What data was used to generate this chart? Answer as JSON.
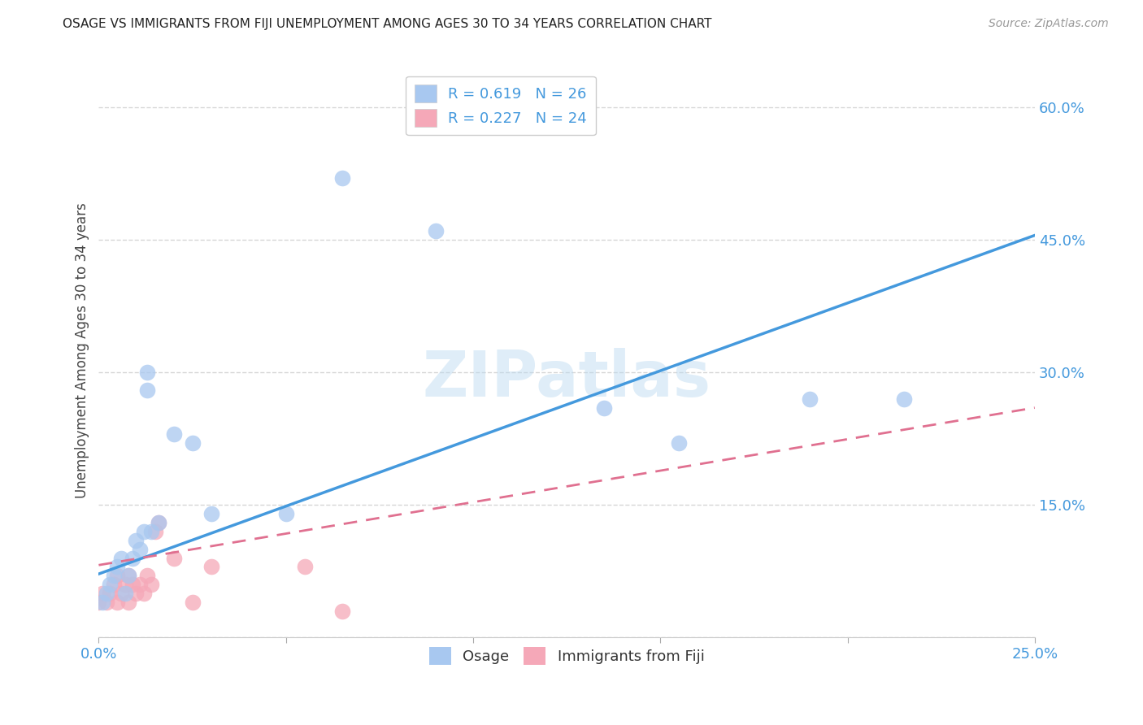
{
  "title": "OSAGE VS IMMIGRANTS FROM FIJI UNEMPLOYMENT AMONG AGES 30 TO 34 YEARS CORRELATION CHART",
  "source": "Source: ZipAtlas.com",
  "ylabel": "Unemployment Among Ages 30 to 34 years",
  "xlim": [
    0.0,
    0.25
  ],
  "ylim": [
    0.0,
    0.65
  ],
  "xticks": [
    0.0,
    0.05,
    0.1,
    0.15,
    0.2,
    0.25
  ],
  "yticks": [
    0.0,
    0.15,
    0.3,
    0.45,
    0.6
  ],
  "osage_R": 0.619,
  "osage_N": 26,
  "fiji_R": 0.227,
  "fiji_N": 24,
  "osage_color": "#a8c8f0",
  "fiji_color": "#f5a8b8",
  "osage_line_color": "#4499dd",
  "fiji_line_color": "#e07090",
  "osage_x": [
    0.001,
    0.002,
    0.003,
    0.004,
    0.005,
    0.006,
    0.007,
    0.008,
    0.009,
    0.01,
    0.011,
    0.012,
    0.013,
    0.013,
    0.014,
    0.016,
    0.02,
    0.025,
    0.03,
    0.05,
    0.065,
    0.09,
    0.135,
    0.155,
    0.19,
    0.215
  ],
  "osage_y": [
    0.04,
    0.05,
    0.06,
    0.07,
    0.08,
    0.09,
    0.05,
    0.07,
    0.09,
    0.11,
    0.1,
    0.12,
    0.3,
    0.28,
    0.12,
    0.13,
    0.23,
    0.22,
    0.14,
    0.14,
    0.52,
    0.46,
    0.26,
    0.22,
    0.27,
    0.27
  ],
  "fiji_x": [
    0.0,
    0.001,
    0.002,
    0.003,
    0.004,
    0.005,
    0.005,
    0.006,
    0.007,
    0.008,
    0.008,
    0.009,
    0.01,
    0.011,
    0.012,
    0.013,
    0.014,
    0.015,
    0.016,
    0.02,
    0.025,
    0.03,
    0.055,
    0.065
  ],
  "fiji_y": [
    0.04,
    0.05,
    0.04,
    0.05,
    0.06,
    0.07,
    0.04,
    0.05,
    0.06,
    0.07,
    0.04,
    0.06,
    0.05,
    0.06,
    0.05,
    0.07,
    0.06,
    0.12,
    0.13,
    0.09,
    0.04,
    0.08,
    0.08,
    0.03
  ],
  "osage_line_x0": 0.0,
  "osage_line_y0": 0.072,
  "osage_line_x1": 0.25,
  "osage_line_y1": 0.455,
  "fiji_line_x0": 0.0,
  "fiji_line_y0": 0.082,
  "fiji_line_x1": 0.25,
  "fiji_line_y1": 0.26,
  "watermark": "ZIPatlas",
  "background_color": "#ffffff",
  "grid_color": "#cccccc"
}
